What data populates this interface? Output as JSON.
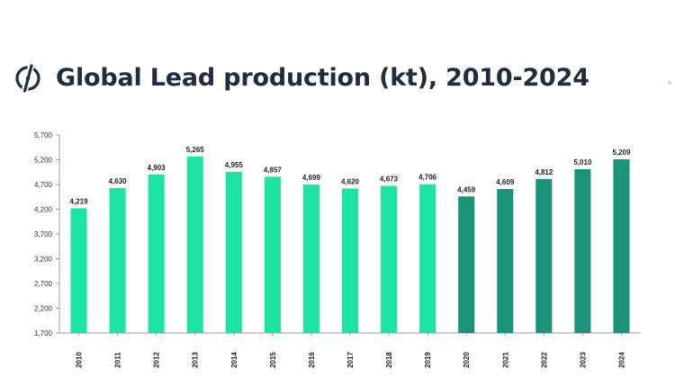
{
  "header": {
    "title": "Global Lead production (kt), 2010-2024",
    "logo_icon": "circle-slash-logo-icon"
  },
  "colors": {
    "title": "#1f2d3d",
    "bar_light": "#1de4a2",
    "bar_dark": "#1a9479",
    "axis": "#9e9e9e",
    "label": "#222222"
  },
  "chart_data": {
    "type": "bar",
    "title": "Global Lead production (kt), 2010-2024",
    "xlabel": "",
    "ylabel": "",
    "categories": [
      "2010",
      "2011",
      "2012",
      "2013",
      "2014",
      "2015",
      "2016",
      "2017",
      "2018",
      "2019",
      "2020",
      "2021",
      "2022",
      "2023",
      "2024"
    ],
    "values": [
      4219,
      4630,
      4903,
      5265,
      4955,
      4857,
      4699,
      4620,
      4673,
      4706,
      4459,
      4609,
      4812,
      5010,
      5209
    ],
    "value_labels": [
      "4,219",
      "4,630",
      "4,903",
      "5,265",
      "4,955",
      "4,857",
      "4,699",
      "4,620",
      "4,673",
      "4,706",
      "4,459",
      "4,609",
      "4,812",
      "5,010",
      "5,209"
    ],
    "ylim": [
      1700,
      5700
    ],
    "yticks": [
      1700,
      2200,
      2700,
      3200,
      3700,
      4200,
      4700,
      5200,
      5700
    ],
    "ytick_labels": [
      "1,700",
      "2,200",
      "2,700",
      "3,200",
      "3,700",
      "4,200",
      "4,700",
      "5,200",
      "5,700"
    ],
    "highlight_from_index": 10,
    "grid": false,
    "legend": "none"
  }
}
